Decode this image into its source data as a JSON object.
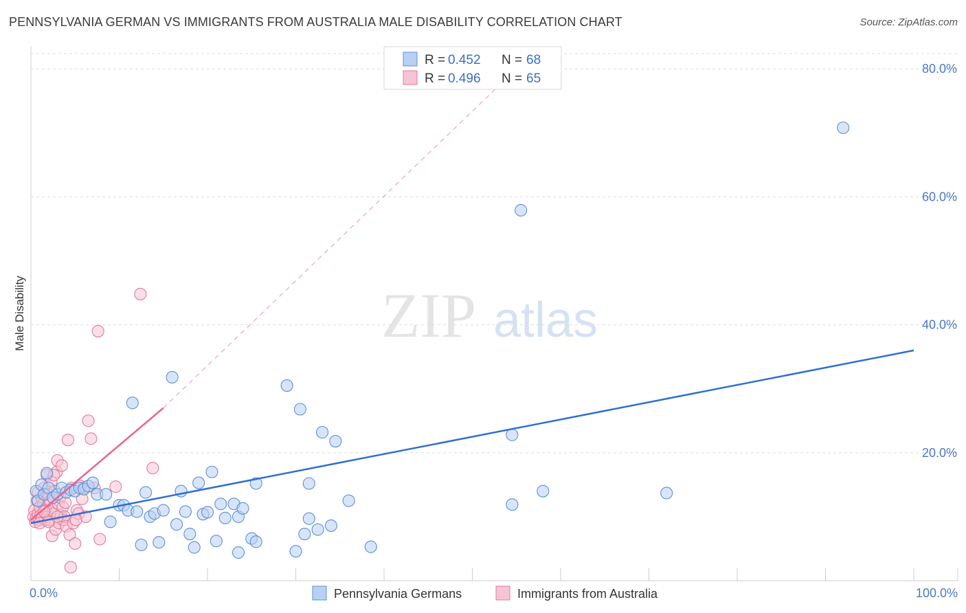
{
  "header": {
    "title": "PENNSYLVANIA GERMAN VS IMMIGRANTS FROM AUSTRALIA MALE DISABILITY CORRELATION CHART",
    "source": "Source: ZipAtlas.com"
  },
  "watermark": {
    "zip": "ZIP",
    "atlas": "atlas"
  },
  "colors": {
    "blue": "#5b8fd9",
    "blue_fill": "#b8d0f2",
    "blue_line": "#2f6fd0",
    "pink": "#e07a9c",
    "pink_fill": "#f6c4d4",
    "pink_line": "#e8648e",
    "axis_label": "#4a78c8",
    "grid": "#dddddd"
  },
  "legend": {
    "row1": {
      "r_label": "R = ",
      "r_value": "0.452",
      "n_label": "N = ",
      "n_value": "68"
    },
    "row2": {
      "r_label": "R = ",
      "r_value": "0.496",
      "n_label": "N = ",
      "n_value": "65"
    }
  },
  "bottom_legend": {
    "series1": "Pennsylvania Germans",
    "series2": "Immigrants from Australia"
  },
  "chart_data": {
    "type": "scatter",
    "title": "PENNSYLVANIA GERMAN VS IMMIGRANTS FROM AUSTRALIA MALE DISABILITY CORRELATION CHART",
    "xlabel": "",
    "ylabel": "Male Disability",
    "xlim": [
      0,
      100
    ],
    "ylim": [
      0,
      84
    ],
    "x_tick_labels": {
      "left": "0.0%",
      "right": "100.0%"
    },
    "y_ticks": [
      {
        "value": 20,
        "label": "20.0%"
      },
      {
        "value": 40,
        "label": "40.0%"
      },
      {
        "value": 60,
        "label": "60.0%"
      },
      {
        "value": 80,
        "label": "80.0%"
      }
    ],
    "series": [
      {
        "name": "Pennsylvania Germans",
        "R": 0.452,
        "N": 68,
        "trend": {
          "x0": 0,
          "y0": 9.0,
          "x1": 100,
          "y1": 36.0,
          "style": "solid"
        },
        "points": [
          [
            0.6,
            14.0
          ],
          [
            0.8,
            12.5
          ],
          [
            1.2,
            15.0
          ],
          [
            1.5,
            13.5
          ],
          [
            2.0,
            14.5
          ],
          [
            2.5,
            13.0
          ],
          [
            3.0,
            13.5
          ],
          [
            3.5,
            14.5
          ],
          [
            4.0,
            13.8
          ],
          [
            4.5,
            14.2
          ],
          [
            5.0,
            14.0
          ],
          [
            5.5,
            14.5
          ],
          [
            6.0,
            14.3
          ],
          [
            6.5,
            14.8
          ],
          [
            7.0,
            15.3
          ],
          [
            7.5,
            13.5
          ],
          [
            8.5,
            13.5
          ],
          [
            9.0,
            9.2
          ],
          [
            10.0,
            11.8
          ],
          [
            10.5,
            11.8
          ],
          [
            11.0,
            11.0
          ],
          [
            11.5,
            27.8
          ],
          [
            12.0,
            10.8
          ],
          [
            12.5,
            5.6
          ],
          [
            13.0,
            13.8
          ],
          [
            13.5,
            10.0
          ],
          [
            14.0,
            10.5
          ],
          [
            14.5,
            6.0
          ],
          [
            15.0,
            11.0
          ],
          [
            16.0,
            31.8
          ],
          [
            16.5,
            8.8
          ],
          [
            17.0,
            14.0
          ],
          [
            17.5,
            10.8
          ],
          [
            18.0,
            7.3
          ],
          [
            18.5,
            5.2
          ],
          [
            19.0,
            15.3
          ],
          [
            19.5,
            10.4
          ],
          [
            20.0,
            10.7
          ],
          [
            20.5,
            17.0
          ],
          [
            21.0,
            6.2
          ],
          [
            21.5,
            12.0
          ],
          [
            22.0,
            9.8
          ],
          [
            23.0,
            12.0
          ],
          [
            23.5,
            4.4
          ],
          [
            23.5,
            10.0
          ],
          [
            24.0,
            11.3
          ],
          [
            25.0,
            6.6
          ],
          [
            25.5,
            6.1
          ],
          [
            25.5,
            15.2
          ],
          [
            29.0,
            30.5
          ],
          [
            30.0,
            4.6
          ],
          [
            30.5,
            26.8
          ],
          [
            31.0,
            7.3
          ],
          [
            31.5,
            9.7
          ],
          [
            31.5,
            15.2
          ],
          [
            32.5,
            8.0
          ],
          [
            33.0,
            23.2
          ],
          [
            34.0,
            8.6
          ],
          [
            34.5,
            21.8
          ],
          [
            36.0,
            12.5
          ],
          [
            38.5,
            5.3
          ],
          [
            54.5,
            22.8
          ],
          [
            54.5,
            11.9
          ],
          [
            58.0,
            14.0
          ],
          [
            72.0,
            13.7
          ],
          [
            92.0,
            70.8
          ],
          [
            55.5,
            57.9
          ],
          [
            1.8,
            16.8
          ]
        ]
      },
      {
        "name": "Immigrants from Australia",
        "R": 0.496,
        "N": 65,
        "trend": {
          "x0": 0,
          "y0": 9.5,
          "x1": 15,
          "y1": 27.0,
          "style": "solid",
          "extension": {
            "x1": 55,
            "y1": 80.0,
            "style": "dashed"
          }
        },
        "points": [
          [
            0.3,
            10.0
          ],
          [
            0.4,
            11.0
          ],
          [
            0.5,
            9.2
          ],
          [
            0.6,
            9.8
          ],
          [
            0.7,
            12.5
          ],
          [
            0.8,
            10.5
          ],
          [
            0.9,
            9.5
          ],
          [
            1.0,
            11.5
          ],
          [
            1.1,
            10.2
          ],
          [
            1.2,
            13.0
          ],
          [
            1.3,
            9.8
          ],
          [
            1.4,
            12.0
          ],
          [
            1.5,
            14.5
          ],
          [
            1.6,
            9.5
          ],
          [
            1.7,
            11.0
          ],
          [
            1.8,
            16.5
          ],
          [
            1.9,
            10.0
          ],
          [
            2.0,
            13.5
          ],
          [
            2.1,
            9.5
          ],
          [
            2.2,
            12.5
          ],
          [
            2.3,
            15.5
          ],
          [
            2.4,
            7.0
          ],
          [
            2.5,
            11.0
          ],
          [
            2.6,
            10.5
          ],
          [
            2.7,
            14.0
          ],
          [
            2.8,
            8.0
          ],
          [
            2.9,
            17.0
          ],
          [
            3.0,
            18.8
          ],
          [
            3.1,
            12.0
          ],
          [
            3.2,
            9.0
          ],
          [
            3.3,
            13.0
          ],
          [
            3.4,
            10.2
          ],
          [
            3.5,
            18.0
          ],
          [
            3.6,
            11.5
          ],
          [
            3.7,
            9.5
          ],
          [
            3.8,
            10.0
          ],
          [
            4.0,
            8.5
          ],
          [
            4.2,
            22.0
          ],
          [
            4.4,
            7.2
          ],
          [
            4.6,
            14.5
          ],
          [
            4.8,
            9.0
          ],
          [
            5.0,
            5.8
          ],
          [
            5.2,
            11.0
          ],
          [
            5.4,
            10.5
          ],
          [
            5.6,
            14.8
          ],
          [
            5.8,
            12.8
          ],
          [
            6.0,
            14.5
          ],
          [
            6.2,
            10.0
          ],
          [
            6.5,
            25.0
          ],
          [
            6.8,
            22.2
          ],
          [
            7.2,
            14.5
          ],
          [
            7.6,
            39.0
          ],
          [
            7.8,
            6.5
          ],
          [
            9.6,
            14.7
          ],
          [
            12.4,
            44.8
          ],
          [
            13.8,
            17.6
          ],
          [
            4.5,
            2.1
          ],
          [
            1.0,
            9.0
          ],
          [
            2.0,
            9.2
          ],
          [
            3.0,
            10.0
          ],
          [
            1.5,
            10.8
          ],
          [
            0.8,
            13.8
          ],
          [
            2.6,
            16.5
          ],
          [
            3.9,
            12.2
          ],
          [
            5.1,
            9.5
          ]
        ]
      }
    ]
  }
}
